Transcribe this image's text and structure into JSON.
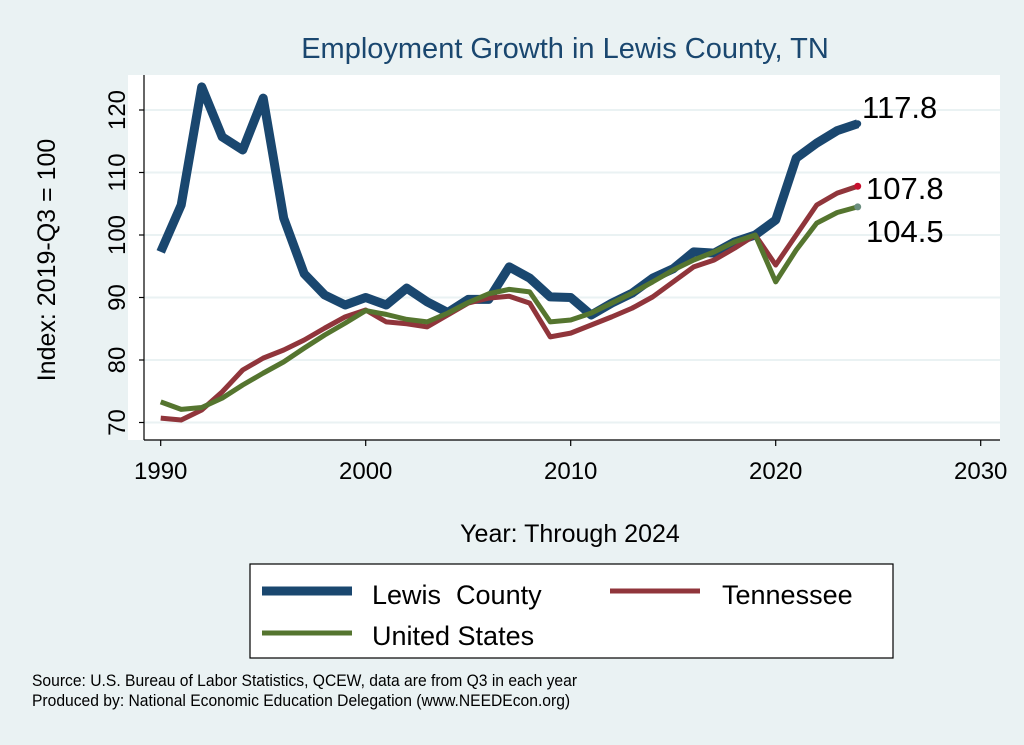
{
  "chart_data": {
    "type": "line",
    "title": "Employment Growth in Lewis County, TN",
    "xlabel": "Year: Through 2024",
    "ylabel": "Index: 2019-Q3 = 100",
    "xlim": [
      1990,
      2030
    ],
    "ylim": [
      70,
      120
    ],
    "xticks": [
      1990,
      2000,
      2010,
      2020,
      2030
    ],
    "yticks": [
      70,
      80,
      90,
      100,
      110,
      120
    ],
    "grid": true,
    "legend_position": "bottom",
    "x": [
      1990,
      1991,
      1992,
      1993,
      1994,
      1995,
      1996,
      1997,
      1998,
      1999,
      2000,
      2001,
      2002,
      2003,
      2004,
      2005,
      2006,
      2007,
      2008,
      2009,
      2010,
      2011,
      2012,
      2013,
      2014,
      2015,
      2016,
      2017,
      2018,
      2019,
      2020,
      2021,
      2022,
      2023,
      2024
    ],
    "series": [
      {
        "name": "Lewis  County",
        "color": "#1a476f",
        "end_label": "117.8",
        "values": [
          97.3,
          104.8,
          123.7,
          115.7,
          113.6,
          121.9,
          102.7,
          93.8,
          90.4,
          88.8,
          90.0,
          88.8,
          91.5,
          89.3,
          87.6,
          89.7,
          89.7,
          94.9,
          93.1,
          90.1,
          90.0,
          87.2,
          89.1,
          90.7,
          93.1,
          94.6,
          97.3,
          97.1,
          98.9,
          100.0,
          102.4,
          112.3,
          114.7,
          116.7,
          117.8
        ]
      },
      {
        "name": "Tennessee",
        "color": "#90353b",
        "end_label": "107.8",
        "values": [
          70.7,
          70.4,
          72.0,
          74.9,
          78.4,
          80.3,
          81.6,
          83.2,
          85.1,
          86.9,
          88.0,
          86.1,
          85.8,
          85.3,
          87.2,
          89.1,
          89.9,
          90.2,
          89.1,
          83.7,
          84.3,
          85.6,
          86.9,
          88.3,
          90.1,
          92.5,
          94.9,
          96.0,
          97.9,
          100.0,
          95.2,
          100.0,
          104.8,
          106.7,
          107.8
        ]
      },
      {
        "name": "United States",
        "color": "#55752f",
        "end_label": "104.5",
        "values": [
          73.3,
          72.1,
          72.4,
          73.9,
          76.0,
          77.9,
          79.7,
          81.9,
          84.0,
          85.9,
          87.9,
          87.3,
          86.5,
          86.1,
          87.5,
          89.2,
          90.6,
          91.3,
          90.9,
          86.1,
          86.4,
          87.5,
          89.1,
          90.7,
          92.5,
          94.4,
          96.0,
          97.3,
          98.9,
          100.0,
          92.5,
          97.6,
          101.9,
          103.6,
          104.5
        ]
      }
    ]
  },
  "footer": {
    "source": "Source: U.S. Bureau of Labor Statistics, QCEW, data are from Q3 in each year",
    "produced": "Produced by: National Economic Education Delegation (www.NEEDEcon.org)"
  }
}
